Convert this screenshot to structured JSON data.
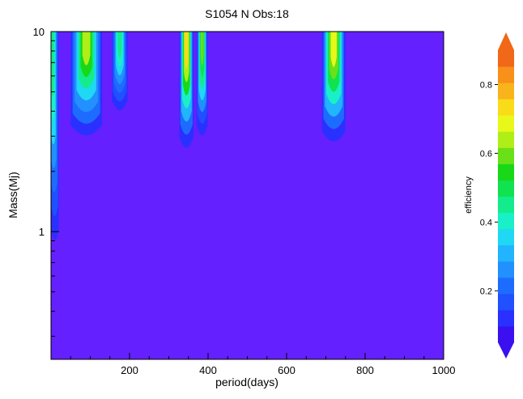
{
  "chart_data": {
    "type": "heatmap",
    "title": "S1054 N Obs:18",
    "xlabel": "period(days)",
    "ylabel": "Mass(Mj)",
    "xlim": [
      0,
      1000
    ],
    "ylim": [
      0.23,
      10
    ],
    "yscale": "log",
    "x_ticks": [
      200,
      400,
      600,
      800,
      1000
    ],
    "y_ticks": [
      1,
      10
    ],
    "grid": false,
    "colorbar": {
      "label": "efficiency",
      "range": [
        0.05,
        0.9
      ],
      "ticks": [
        0.2,
        0.4,
        0.6,
        0.8
      ],
      "colors": [
        "#3a10f0",
        "#2a30ff",
        "#2050ff",
        "#1e6cff",
        "#2290ff",
        "#22b4ff",
        "#1fd8f4",
        "#19f0c8",
        "#12ec8c",
        "#10e250",
        "#18d818",
        "#6ae018",
        "#b0ee18",
        "#e8f81a",
        "#fadb1a",
        "#f8b41a",
        "#f8901a",
        "#f06818"
      ],
      "extend": "both"
    },
    "background_color": "#6420ff",
    "features": [
      {
        "region": "low-period edge",
        "period_range": [
          0,
          20
        ],
        "mass_min": 0.9,
        "peak_efficiency": 0.45
      },
      {
        "region": "column",
        "period_center": 90,
        "period_width": 40,
        "mass_min": 3.0,
        "peak_efficiency": 0.65
      },
      {
        "region": "column",
        "period_center": 175,
        "period_width": 20,
        "mass_min": 4.0,
        "peak_efficiency": 0.45
      },
      {
        "region": "column",
        "period_center": 345,
        "period_width": 18,
        "mass_min": 2.6,
        "peak_efficiency": 0.75
      },
      {
        "region": "column",
        "period_center": 385,
        "period_width": 14,
        "mass_min": 3.0,
        "peak_efficiency": 0.6
      },
      {
        "region": "column",
        "period_center": 720,
        "period_width": 30,
        "mass_min": 2.8,
        "peak_efficiency": 0.7
      }
    ]
  }
}
